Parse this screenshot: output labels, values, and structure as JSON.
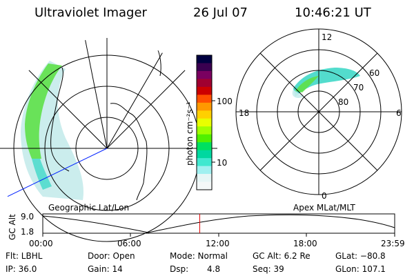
{
  "header": {
    "title": "Ultraviolet Imager",
    "date": "26 Jul 07",
    "time": "10:46:21 UT"
  },
  "left_panel": {
    "caption": "Geographic Lat/Lon"
  },
  "right_panel": {
    "caption": "Apex MLat/MLT",
    "mlt_labels": {
      "top": "12",
      "bottom": "0",
      "left": "18",
      "right": "6"
    },
    "lat_labels": [
      "60",
      "70",
      "80"
    ]
  },
  "colorbar": {
    "unit_label": "photon cm⁻²s⁻¹",
    "ticks": [
      "100",
      "10"
    ],
    "colors": [
      "#000040",
      "#3a0050",
      "#7a0060",
      "#a00030",
      "#cc0000",
      "#ff5000",
      "#ff9900",
      "#ffd000",
      "#e8ff00",
      "#a0ff00",
      "#50f000",
      "#00e060",
      "#00d8a0",
      "#40e8d0",
      "#a0f0f0",
      "#e6f6f6",
      "#f4f8f8"
    ]
  },
  "altitude": {
    "axis_label": "GC Alt",
    "ytick_top": "9.0",
    "ytick_bottom": "1.8",
    "time_ticks": [
      "00:00",
      "06:00",
      "12:00",
      "18:00",
      "23:59"
    ],
    "current_time_fraction": 0.446
  },
  "footer": {
    "flt": "Flt: LBHL",
    "ip": "IP: 36.0",
    "door": "Door: Open",
    "gain": "Gain: 14",
    "mode": "Mode: Normal",
    "dsp_label": "Dsp:",
    "dsp_value": "4.8",
    "gc_alt": "GC Alt: 6.2 Re",
    "seq": "Seq: 39",
    "glat": "GLat: −80.8",
    "glon": "GLon: 107.1"
  }
}
